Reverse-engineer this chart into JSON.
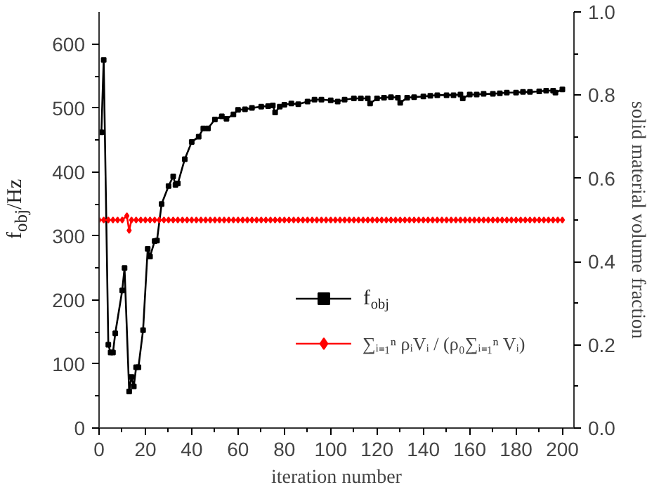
{
  "chart_data": {
    "type": "line",
    "xlabel": "iteration number",
    "ylabel": "f$_{obj}$/Hz",
    "y2label": "solid material volume fraction",
    "xlim": [
      0,
      205
    ],
    "xticks": [
      0,
      20,
      40,
      60,
      80,
      100,
      120,
      140,
      160,
      180,
      200
    ],
    "ylim": [
      0,
      650
    ],
    "yticks": [
      0,
      100,
      200,
      300,
      400,
      500,
      600
    ],
    "y2lim": [
      0,
      1.0
    ],
    "y2ticks": [
      {
        "value": 0,
        "label": "0.0"
      },
      0.2,
      0.4,
      0.6,
      0.8,
      {
        "value": 1,
        "label": "1.0"
      }
    ],
    "grid": false,
    "legend": "bottom right",
    "line_style": "solid",
    "series": [
      {
        "name": "f$_{obj}$",
        "color": "#000000",
        "marker": "square",
        "x": [
          1,
          2,
          4,
          5,
          6,
          7,
          10,
          11,
          13,
          14,
          15,
          16,
          17,
          19,
          21,
          22,
          24,
          25,
          27,
          30,
          32,
          33,
          34,
          37,
          40,
          43,
          45,
          47,
          50,
          53,
          55,
          58,
          60,
          63,
          66,
          70,
          73,
          75,
          76,
          78,
          80,
          83,
          86,
          90,
          93,
          96,
          100,
          103,
          106,
          110,
          113,
          116,
          117,
          120,
          123,
          126,
          129,
          130,
          133,
          136,
          140,
          143,
          146,
          150,
          153,
          156,
          157,
          160,
          163,
          166,
          170,
          173,
          176,
          180,
          183,
          186,
          190,
          193,
          196,
          197,
          200
        ],
        "values": [
          462,
          575,
          130,
          118,
          118,
          148,
          215,
          250,
          57,
          80,
          65,
          95,
          95,
          153,
          280,
          268,
          292,
          293,
          350,
          378,
          393,
          380,
          382,
          420,
          447,
          455,
          468,
          468,
          482,
          487,
          483,
          490,
          497,
          498,
          500,
          502,
          503,
          504,
          493,
          502,
          505,
          507,
          506,
          510,
          513,
          513,
          512,
          510,
          513,
          515,
          515,
          515,
          507,
          515,
          516,
          517,
          516,
          508,
          516,
          517,
          518,
          519,
          520,
          520,
          520,
          521,
          515,
          521,
          521,
          522,
          522,
          523,
          524,
          524,
          525,
          525,
          526,
          527,
          527,
          524,
          529
        ]
      },
      {
        "name": "∑ᵢ₌₁ⁿ ρᵢVᵢ / (ρ₀∑ᵢ₌₁ⁿ Vᵢ)",
        "color": "#ff0000",
        "marker": "diamond",
        "axis": "y2",
        "x": [
          0,
          2,
          4,
          6,
          8,
          10,
          12,
          13,
          14,
          16,
          18,
          20,
          22,
          24,
          26,
          28,
          30,
          32,
          34,
          36,
          38,
          40,
          42,
          44,
          46,
          48,
          50,
          52,
          54,
          56,
          58,
          60,
          62,
          64,
          66,
          68,
          70,
          72,
          74,
          76,
          78,
          80,
          82,
          84,
          86,
          88,
          90,
          92,
          94,
          96,
          98,
          100,
          102,
          104,
          106,
          108,
          110,
          112,
          114,
          116,
          118,
          120,
          122,
          124,
          126,
          128,
          130,
          132,
          134,
          136,
          138,
          140,
          142,
          144,
          146,
          148,
          150,
          152,
          154,
          156,
          158,
          160,
          162,
          164,
          166,
          168,
          170,
          172,
          174,
          176,
          178,
          180,
          182,
          184,
          186,
          188,
          190,
          192,
          194,
          196,
          198,
          200
        ],
        "values": [
          0.5,
          0.5,
          0.5,
          0.5,
          0.5,
          0.5,
          0.51,
          0.475,
          0.5,
          0.5,
          0.5,
          0.5,
          0.5,
          0.5,
          0.5,
          0.5,
          0.5,
          0.5,
          0.5,
          0.5,
          0.5,
          0.5,
          0.5,
          0.5,
          0.5,
          0.5,
          0.5,
          0.5,
          0.5,
          0.5,
          0.5,
          0.5,
          0.5,
          0.5,
          0.5,
          0.5,
          0.5,
          0.5,
          0.5,
          0.5,
          0.5,
          0.5,
          0.5,
          0.5,
          0.5,
          0.5,
          0.5,
          0.5,
          0.5,
          0.5,
          0.5,
          0.5,
          0.5,
          0.5,
          0.5,
          0.5,
          0.5,
          0.5,
          0.5,
          0.5,
          0.5,
          0.5,
          0.5,
          0.5,
          0.5,
          0.5,
          0.5,
          0.5,
          0.5,
          0.5,
          0.5,
          0.5,
          0.5,
          0.5,
          0.5,
          0.5,
          0.5,
          0.5,
          0.5,
          0.5,
          0.5,
          0.5,
          0.5,
          0.5,
          0.5,
          0.5,
          0.5,
          0.5,
          0.5,
          0.5,
          0.5,
          0.5,
          0.5,
          0.5,
          0.5,
          0.5,
          0.5,
          0.5,
          0.5,
          0.5,
          0.5,
          0.5
        ]
      }
    ]
  }
}
